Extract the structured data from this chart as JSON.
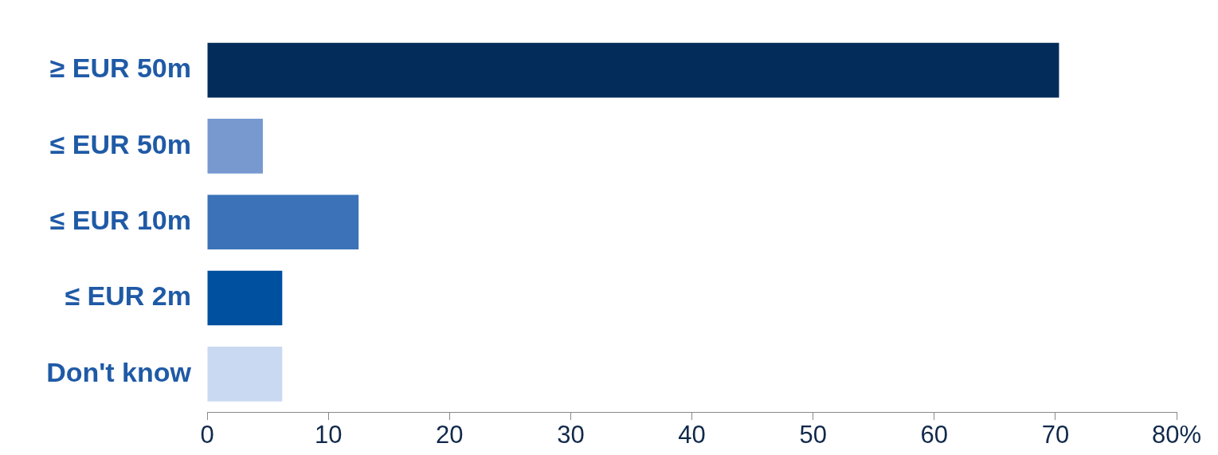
{
  "chart_data": {
    "type": "bar",
    "orientation": "horizontal",
    "categories": [
      "≥ EUR 50m",
      "≤ EUR 50m",
      "≤ EUR 10m",
      "≤ EUR 2m",
      "Don't know"
    ],
    "values": [
      70.3,
      4.6,
      12.5,
      6.2,
      6.2
    ],
    "colors": [
      "#032c5a",
      "#7799d0",
      "#3b72b8",
      "#0050a0",
      "#c9d9f2"
    ],
    "xlim": [
      0,
      80
    ],
    "xticks": [
      0,
      10,
      20,
      30,
      40,
      50,
      60,
      70,
      {
        "value": 80,
        "label": "80%"
      }
    ],
    "grid": false,
    "legend": false
  }
}
